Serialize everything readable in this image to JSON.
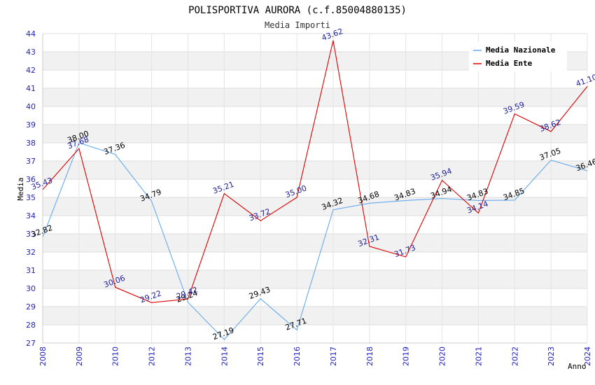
{
  "chart_data": {
    "type": "line",
    "title": "POLISPORTIVA AURORA (c.f.85004880135)",
    "subtitle": "Media Importi",
    "xlabel": "Anno",
    "ylabel": "Media",
    "ylim": [
      27,
      44
    ],
    "y_ticks": [
      27,
      28,
      29,
      30,
      31,
      32,
      33,
      34,
      35,
      36,
      37,
      38,
      39,
      40,
      41,
      42,
      43,
      44
    ],
    "categories": [
      "2008",
      "2009",
      "2010",
      "2012",
      "2013",
      "2014",
      "2015",
      "2016",
      "2017",
      "2018",
      "2019",
      "2020",
      "2021",
      "2022",
      "2023",
      "2024"
    ],
    "legend_position": "top-right",
    "grid": true,
    "series": [
      {
        "name": "Media Nazionale",
        "color": "#66aaee",
        "label_color": "#000000",
        "values": [
          32.82,
          38.0,
          37.36,
          34.79,
          29.24,
          27.19,
          29.43,
          27.71,
          34.32,
          34.68,
          34.83,
          34.94,
          34.83,
          34.85,
          37.05,
          36.46
        ],
        "labels": [
          "32.82",
          "38.00",
          "37.36",
          "34.79",
          "29.24",
          "27.19",
          "29.43",
          "27.71",
          "34.32",
          "34.68",
          "34.83",
          "34.94",
          "34.83",
          "34.85",
          "37.05",
          "36.46"
        ]
      },
      {
        "name": "Media Ente",
        "color": "#dd0000",
        "label_color": "#1f1f99",
        "values": [
          35.43,
          37.68,
          30.06,
          29.22,
          29.42,
          35.21,
          33.72,
          35.0,
          43.62,
          32.31,
          31.73,
          35.94,
          34.14,
          39.59,
          38.62,
          41.1
        ],
        "labels": [
          "35.43",
          "37.68",
          "30.06",
          "29.22",
          "29.42",
          "35.21",
          "33.72",
          "35.00",
          "43.62",
          "32.31",
          "31.73",
          "35.94",
          "34.14",
          "39.59",
          "38.62",
          "41.10"
        ]
      }
    ]
  }
}
